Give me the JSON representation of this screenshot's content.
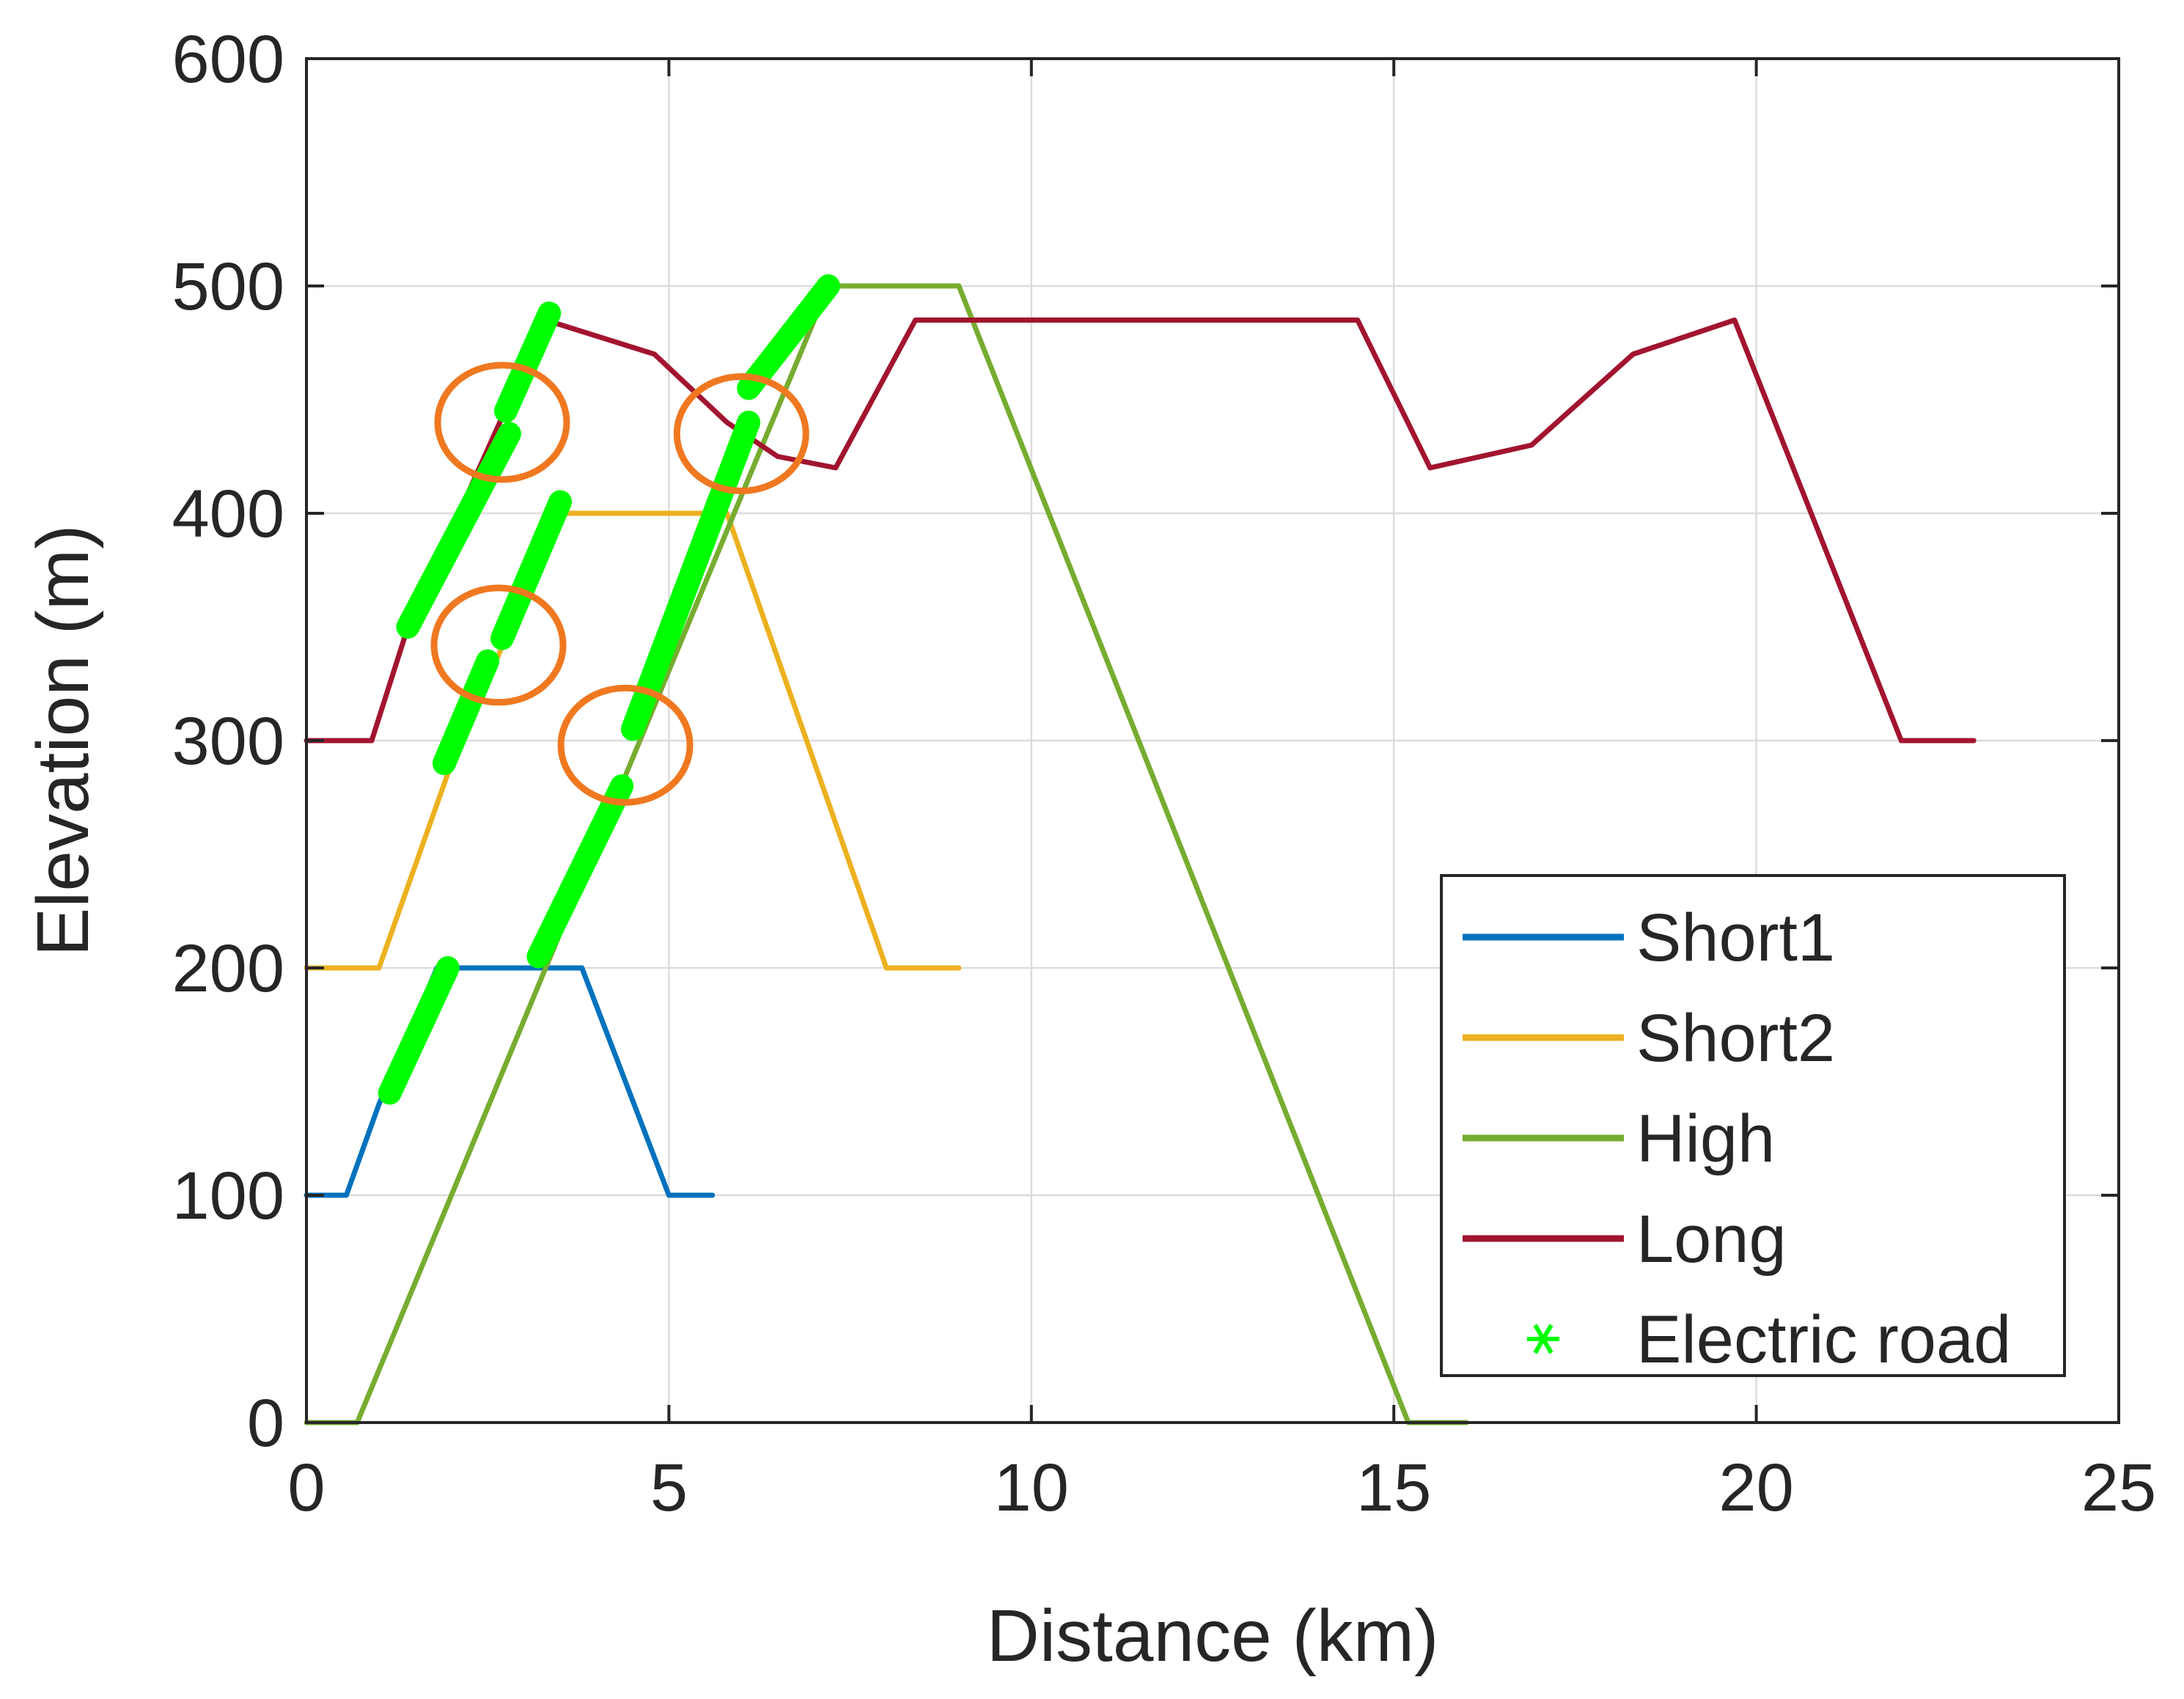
{
  "chart_data": {
    "type": "line",
    "title": "",
    "xlabel": "Distance (km)",
    "ylabel": "Elevation (m)",
    "xlim": [
      0,
      25
    ],
    "ylim": [
      0,
      600
    ],
    "xticks": [
      0,
      5,
      10,
      15,
      20,
      25
    ],
    "yticks": [
      0,
      100,
      200,
      300,
      400,
      500,
      600
    ],
    "grid": true,
    "legend_position": "bottom-right",
    "series": [
      {
        "name": "Short1",
        "color": "#0072BD",
        "x": [
          0,
          0.55,
          1.0,
          1.8,
          3.8,
          5.0,
          5.6
        ],
        "y": [
          100,
          100,
          140,
          200,
          200,
          100,
          100
        ]
      },
      {
        "name": "Short2",
        "color": "#EDB120",
        "x": [
          0,
          1.0,
          2.0,
          3.5,
          5.8,
          8.0,
          9.0
        ],
        "y": [
          200,
          200,
          290,
          400,
          400,
          200,
          200
        ]
      },
      {
        "name": "High",
        "color": "#77AC30",
        "x": [
          0,
          0.7,
          7.2,
          9.0,
          15.2,
          16.0
        ],
        "y": [
          0,
          0,
          500,
          500,
          0,
          0
        ]
      },
      {
        "name": "Long",
        "color": "#A2142F",
        "x": [
          0,
          0.9,
          1.4,
          3.3,
          4.8,
          5.8,
          6.5,
          7.3,
          8.4,
          14.5,
          15.5,
          16.9,
          18.3,
          19.7,
          22.0,
          23.0
        ],
        "y": [
          300,
          300,
          350,
          485,
          470,
          440,
          425,
          420,
          485,
          485,
          420,
          430,
          470,
          485,
          300,
          300
        ]
      }
    ],
    "electric_road": {
      "name": "Electric road",
      "color": "#00FF00",
      "marker": "*",
      "segments": [
        {
          "x": [
            1.15,
            1.95
          ],
          "y": [
            145,
            200
          ]
        },
        {
          "x": [
            1.9,
            2.5
          ],
          "y": [
            290,
            335
          ]
        },
        {
          "x": [
            2.7,
            3.5
          ],
          "y": [
            345,
            405
          ]
        },
        {
          "x": [
            1.4,
            2.8
          ],
          "y": [
            350,
            435
          ]
        },
        {
          "x": [
            2.75,
            3.35
          ],
          "y": [
            445,
            488
          ]
        },
        {
          "x": [
            3.2,
            4.35
          ],
          "y": [
            205,
            280
          ]
        },
        {
          "x": [
            4.5,
            6.1
          ],
          "y": [
            305,
            440
          ]
        },
        {
          "x": [
            6.1,
            7.2
          ],
          "y": [
            455,
            500
          ]
        }
      ]
    },
    "highlighted_regions": [
      {
        "x": 2.7,
        "y": 440
      },
      {
        "x": 2.65,
        "y": 342
      },
      {
        "x": 4.4,
        "y": 298
      },
      {
        "x": 6.0,
        "y": 435
      }
    ]
  }
}
